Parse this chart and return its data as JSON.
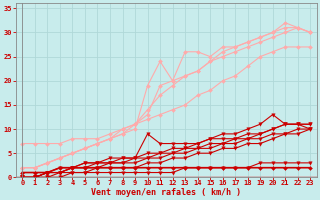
{
  "xlabel": "Vent moyen/en rafales ( km/h )",
  "background_color": "#c8ecec",
  "grid_color": "#b0d8d8",
  "x_values": [
    0,
    1,
    2,
    3,
    4,
    5,
    6,
    7,
    8,
    9,
    10,
    11,
    12,
    13,
    14,
    15,
    16,
    17,
    18,
    19,
    20,
    21,
    22,
    23
  ],
  "ylim": [
    0,
    36
  ],
  "xlim": [
    -0.5,
    23.5
  ],
  "series": [
    {
      "y": [
        0,
        0,
        0,
        0,
        1,
        1,
        1,
        1,
        1,
        1,
        1,
        1,
        1,
        2,
        2,
        2,
        2,
        2,
        2,
        3,
        3,
        3,
        3,
        3
      ],
      "color": "#cc0000",
      "lw": 0.8,
      "marker": "v",
      "ms": 2.5
    },
    {
      "y": [
        0,
        0,
        0,
        1,
        1,
        1,
        2,
        2,
        2,
        2,
        3,
        3,
        4,
        4,
        5,
        5,
        6,
        6,
        7,
        7,
        8,
        9,
        9,
        10
      ],
      "color": "#cc0000",
      "lw": 0.8,
      "marker": "v",
      "ms": 2.5
    },
    {
      "y": [
        0,
        0,
        1,
        1,
        2,
        2,
        2,
        3,
        3,
        3,
        4,
        4,
        5,
        5,
        6,
        6,
        7,
        7,
        8,
        8,
        9,
        9,
        10,
        10
      ],
      "color": "#cc0000",
      "lw": 0.8,
      "marker": "v",
      "ms": 2.5
    },
    {
      "y": [
        0,
        0,
        1,
        1,
        2,
        2,
        3,
        3,
        3,
        4,
        4,
        5,
        5,
        6,
        6,
        7,
        7,
        8,
        9,
        9,
        10,
        11,
        11,
        11
      ],
      "color": "#cc0000",
      "lw": 0.8,
      "marker": "v",
      "ms": 2.5
    },
    {
      "y": [
        0,
        0,
        1,
        1,
        2,
        3,
        3,
        3,
        4,
        4,
        9,
        7,
        7,
        7,
        7,
        8,
        8,
        8,
        8,
        9,
        10,
        11,
        11,
        10
      ],
      "color": "#cc0000",
      "lw": 0.8,
      "marker": "v",
      "ms": 2.5
    },
    {
      "y": [
        0,
        0,
        1,
        2,
        2,
        3,
        3,
        4,
        4,
        4,
        5,
        5,
        6,
        6,
        7,
        8,
        9,
        9,
        10,
        11,
        13,
        11,
        11,
        11
      ],
      "color": "#cc0000",
      "lw": 0.8,
      "marker": "v",
      "ms": 2.5
    },
    {
      "y": [
        1,
        1,
        1,
        2,
        2,
        2,
        2,
        2,
        2,
        2,
        2,
        2,
        2,
        2,
        2,
        2,
        2,
        2,
        2,
        2,
        2,
        2,
        2,
        2
      ],
      "color": "#cc0000",
      "lw": 1.2,
      "marker": "D",
      "ms": 2
    },
    {
      "y": [
        7,
        7,
        7,
        7,
        8,
        8,
        8,
        9,
        10,
        11,
        12,
        13,
        14,
        15,
        17,
        18,
        20,
        21,
        23,
        25,
        26,
        27,
        27,
        27
      ],
      "color": "#ffaaaa",
      "lw": 0.8,
      "marker": "D",
      "ms": 2
    },
    {
      "y": [
        2,
        2,
        3,
        4,
        5,
        6,
        7,
        8,
        9,
        10,
        19,
        24,
        20,
        26,
        26,
        25,
        27,
        27,
        28,
        29,
        30,
        31,
        31,
        30
      ],
      "color": "#ffaaaa",
      "lw": 0.8,
      "marker": "D",
      "ms": 2
    },
    {
      "y": [
        2,
        2,
        3,
        4,
        5,
        6,
        7,
        8,
        10,
        11,
        13,
        19,
        20,
        21,
        22,
        24,
        25,
        26,
        27,
        28,
        29,
        30,
        31,
        30
      ],
      "color": "#ffaaaa",
      "lw": 0.8,
      "marker": "D",
      "ms": 2
    },
    {
      "y": [
        2,
        2,
        3,
        4,
        5,
        6,
        7,
        8,
        9,
        11,
        14,
        17,
        19,
        21,
        22,
        24,
        26,
        27,
        28,
        29,
        30,
        32,
        31,
        30
      ],
      "color": "#ffaaaa",
      "lw": 0.8,
      "marker": "D",
      "ms": 2
    }
  ],
  "yticks": [
    0,
    5,
    10,
    15,
    20,
    25,
    30,
    35
  ],
  "xticks": [
    0,
    1,
    2,
    3,
    4,
    5,
    6,
    7,
    8,
    9,
    10,
    11,
    12,
    13,
    14,
    15,
    16,
    17,
    18,
    19,
    20,
    21,
    22,
    23
  ],
  "tick_color": "#cc0000",
  "label_color": "#cc0000",
  "axis_color": "#888888",
  "tick_fontsize": 5,
  "label_fontsize": 6
}
